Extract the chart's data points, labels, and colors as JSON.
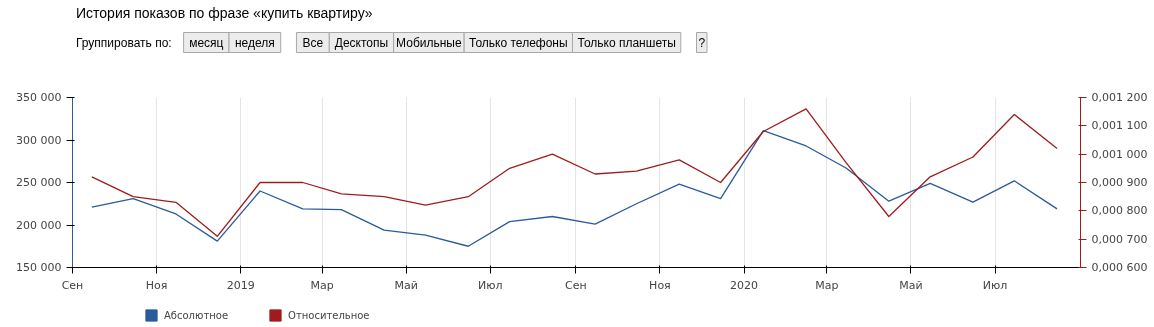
{
  "chart_data": {
    "type": "line",
    "title": "История показов по фразе «купить квартиру»",
    "annotations": [
      "Группировать по:",
      "месяц",
      "неделя",
      "Все",
      "Десктопы",
      "Мобильные",
      "Только телефоны",
      "Только планшеты",
      "?"
    ],
    "x": [
      "2018-09-15",
      "2018-10-15",
      "2018-11-15",
      "2018-12-15",
      "2019-01-15",
      "2019-02-15",
      "2019-03-15",
      "2019-04-15",
      "2019-05-15",
      "2019-06-15",
      "2019-07-15",
      "2019-08-15",
      "2019-09-15",
      "2019-10-15",
      "2019-11-15",
      "2019-12-15",
      "2020-01-15",
      "2020-02-15",
      "2020-03-15",
      "2020-04-15",
      "2020-05-15",
      "2020-06-15",
      "2020-07-15",
      "2020-08-15"
    ],
    "series": [
      {
        "name": "Абсолютное",
        "color": "#2a5b9c",
        "values": [
          221000,
          231000,
          213000,
          181000,
          240000,
          219000,
          218000,
          194000,
          188000,
          175000,
          204000,
          210000,
          201000,
          225000,
          248000,
          231000,
          311000,
          293000,
          267000,
          228000,
          249000,
          227000,
          252000,
          219000
        ]
      },
      {
        "name": "Относительное",
        "color": "#a01c1c",
        "axis": "y2",
        "values": [
          0.00092,
          0.00085,
          0.00083,
          0.00071,
          0.0009,
          0.0009,
          0.00086,
          0.00085,
          0.00082,
          0.00085,
          0.00095,
          0.001,
          0.00093,
          0.00094,
          0.00098,
          0.0009,
          0.00108,
          0.00116,
          0.00097,
          0.00078,
          0.00092,
          0.00099,
          0.00114,
          0.00102
        ]
      }
    ],
    "xlim": [
      "2018-09-01",
      "2020-09-01"
    ],
    "xticks": [
      {
        "value": "2018-09-01",
        "label": "Сен"
      },
      {
        "value": "2018-11-01",
        "label": "Ноя"
      },
      {
        "value": "2019-01-01",
        "label": "2019"
      },
      {
        "value": "2019-03-01",
        "label": "Мар"
      },
      {
        "value": "2019-05-01",
        "label": "Май"
      },
      {
        "value": "2019-07-01",
        "label": "Июл"
      },
      {
        "value": "2019-09-01",
        "label": "Сен"
      },
      {
        "value": "2019-11-01",
        "label": "Ноя"
      },
      {
        "value": "2020-01-01",
        "label": "2020"
      },
      {
        "value": "2020-03-01",
        "label": "Мар"
      },
      {
        "value": "2020-05-01",
        "label": "Май"
      },
      {
        "value": "2020-07-01",
        "label": "Июл"
      }
    ],
    "ylim": [
      150000,
      350000
    ],
    "yticks": [
      {
        "value": 150000,
        "label": "150 000"
      },
      {
        "value": 200000,
        "label": "200 000"
      },
      {
        "value": 250000,
        "label": "250 000"
      },
      {
        "value": 300000,
        "label": "300 000"
      },
      {
        "value": 350000,
        "label": "350 000"
      }
    ],
    "y2lim": [
      0.0006,
      0.0012
    ],
    "y2ticks": [
      {
        "value": 0.0006,
        "label": "0,000 600"
      },
      {
        "value": 0.0007,
        "label": "0,000 700"
      },
      {
        "value": 0.0008,
        "label": "0,000 800"
      },
      {
        "value": 0.0009,
        "label": "0,000 900"
      },
      {
        "value": 0.001,
        "label": "0,001 000"
      },
      {
        "value": 0.0011,
        "label": "0,001 100"
      },
      {
        "value": 0.0012,
        "label": "0,001 200"
      }
    ],
    "grid": "x",
    "legend": "bottom left",
    "line_style": "solid",
    "marker": "none"
  }
}
